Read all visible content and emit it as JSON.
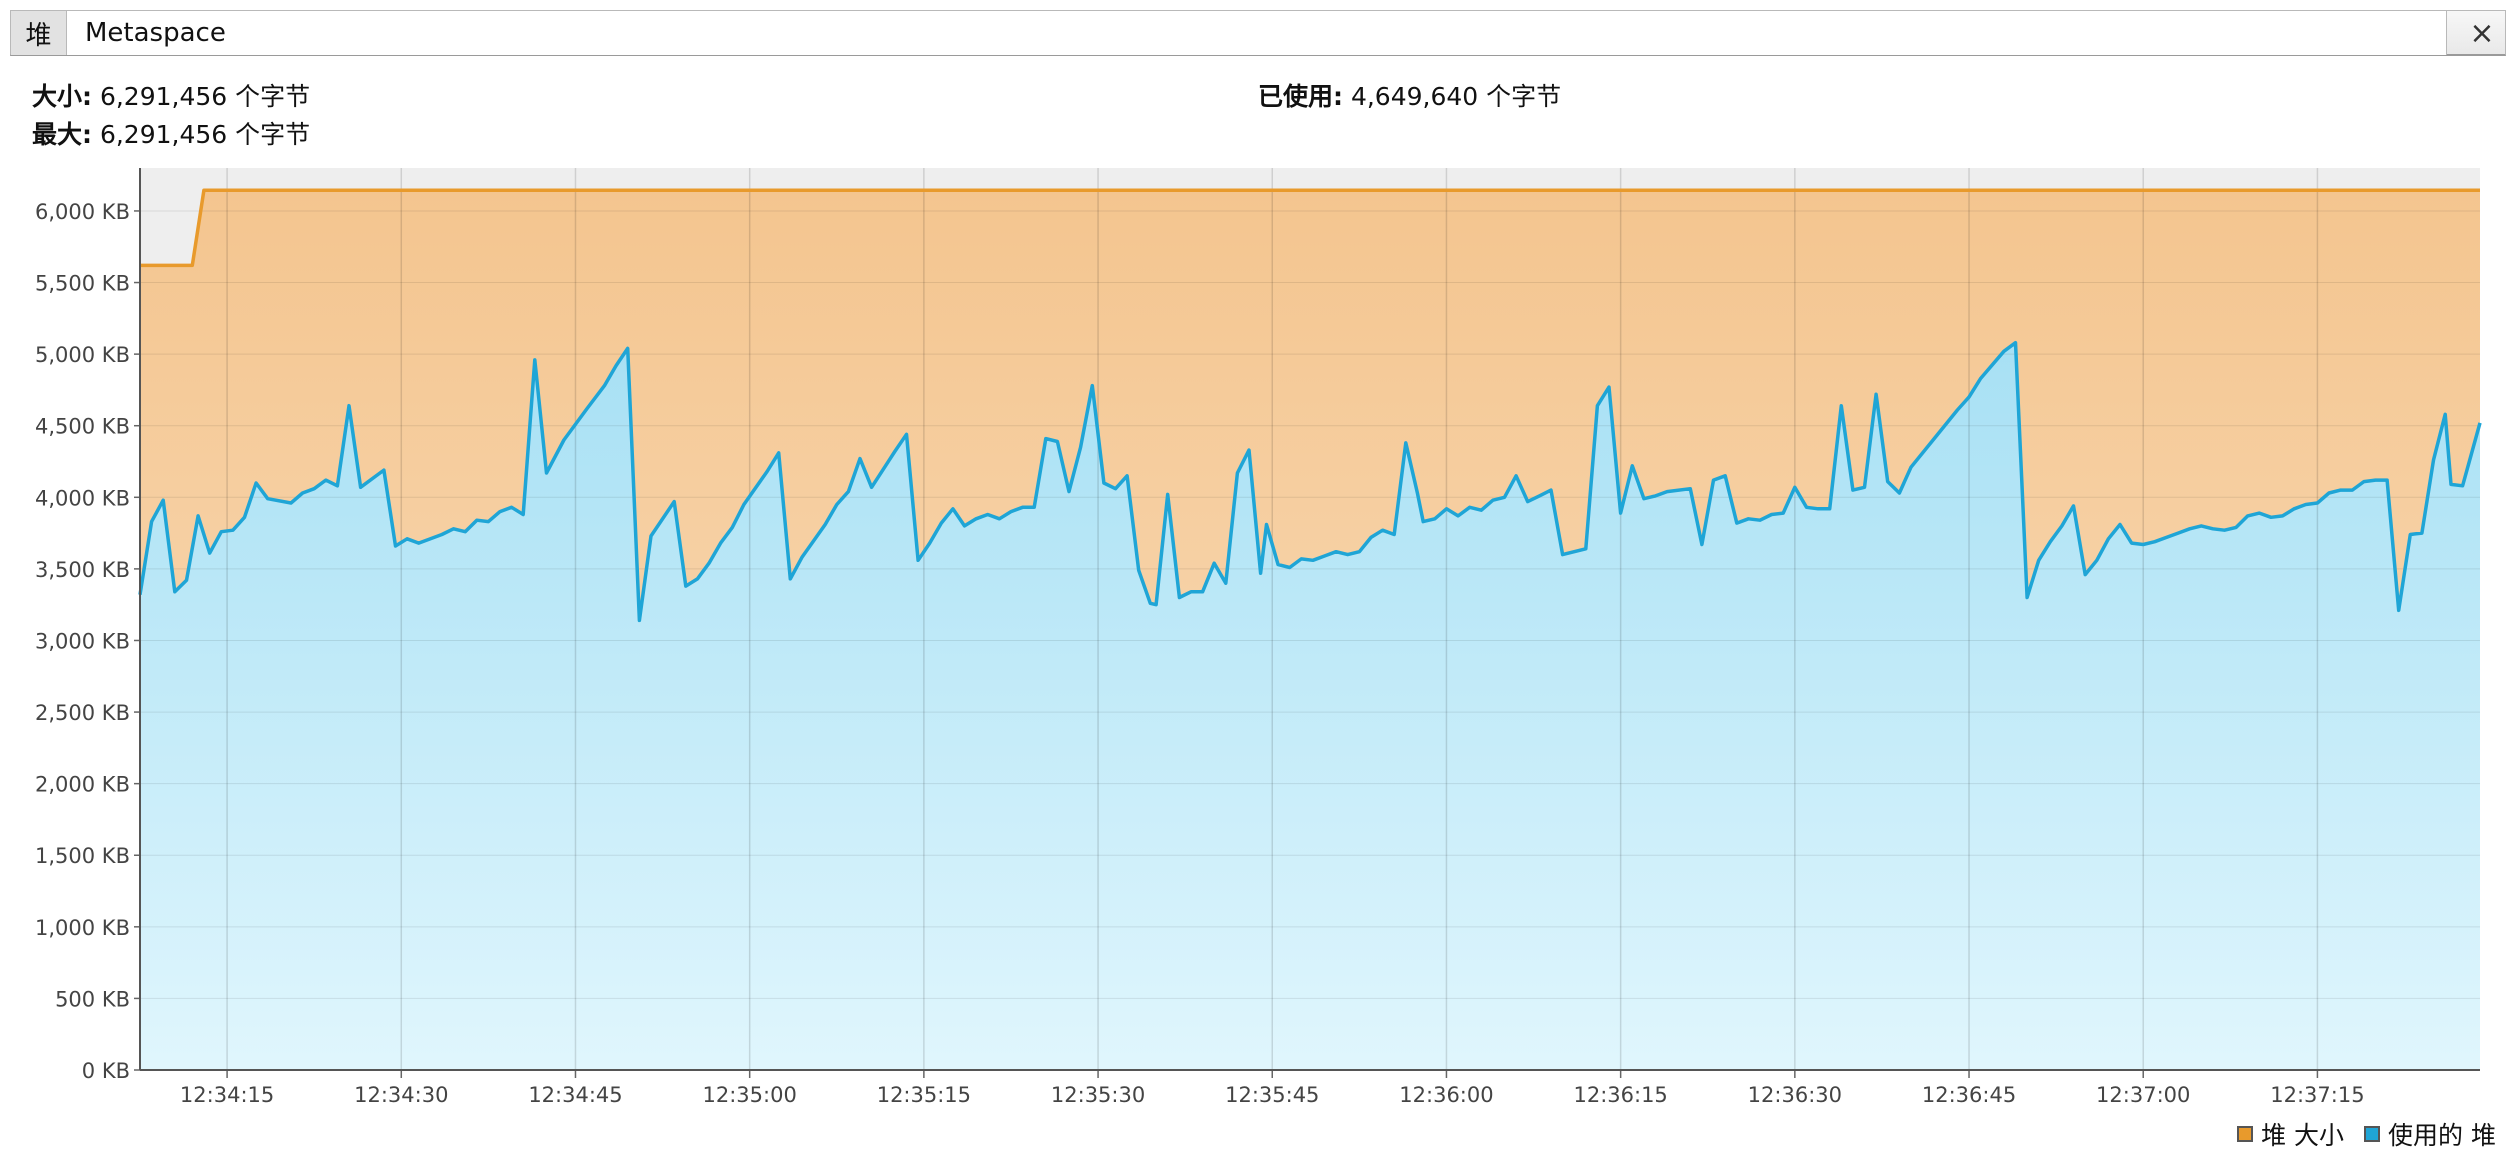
{
  "tabs": [
    {
      "label": "堆",
      "active": false
    },
    {
      "label": "Metaspace",
      "active": true
    }
  ],
  "close_glyph": "×",
  "info": {
    "size_label": "大小:",
    "size_value": "6,291,456 个字节",
    "max_label": "最大:",
    "max_value": "6,291,456 个字节",
    "used_label": "已使用:",
    "used_value": "4,649,640 个字节"
  },
  "chart_data": {
    "type": "area",
    "ylim": [
      0,
      6300
    ],
    "xlim": [
      "12:34:07.5",
      "12:37:29"
    ],
    "y_ticks": [
      {
        "v": 0,
        "label": "0 KB"
      },
      {
        "v": 500,
        "label": "500 KB"
      },
      {
        "v": 1000,
        "label": "1,000 KB"
      },
      {
        "v": 1500,
        "label": "1,500 KB"
      },
      {
        "v": 2000,
        "label": "2,000 KB"
      },
      {
        "v": 2500,
        "label": "2,500 KB"
      },
      {
        "v": 3000,
        "label": "3,000 KB"
      },
      {
        "v": 3500,
        "label": "3,500 KB"
      },
      {
        "v": 4000,
        "label": "4,000 KB"
      },
      {
        "v": 4500,
        "label": "4,500 KB"
      },
      {
        "v": 5000,
        "label": "5,000 KB"
      },
      {
        "v": 5500,
        "label": "5,500 KB"
      },
      {
        "v": 6000,
        "label": "6,000 KB"
      }
    ],
    "x_ticks": [
      "12:34:15",
      "12:34:30",
      "12:34:45",
      "12:35:00",
      "12:35:15",
      "12:35:30",
      "12:35:45",
      "12:36:00",
      "12:36:15",
      "12:36:30",
      "12:36:45",
      "12:37:00",
      "12:37:15"
    ],
    "grid": true,
    "legend_position": "bottom-right",
    "series": [
      {
        "name": "堆 大小",
        "color": "#e89a2c",
        "points": [
          [
            "12:34:07.5",
            5620
          ],
          [
            "12:34:12",
            5620
          ],
          [
            "12:34:13",
            6144
          ],
          [
            "12:37:29",
            6144
          ]
        ]
      },
      {
        "name": "使用的 堆",
        "color": "#1fa5d6",
        "points": [
          [
            "12:34:07.5",
            3320
          ],
          [
            "12:34:08.5",
            3830
          ],
          [
            "12:34:09.5",
            3980
          ],
          [
            "12:34:10.5",
            3340
          ],
          [
            "12:34:11.5",
            3420
          ],
          [
            "12:34:12.5",
            3870
          ],
          [
            "12:34:13.5",
            3610
          ],
          [
            "12:34:14.5",
            3760
          ],
          [
            "12:34:15.5",
            3770
          ],
          [
            "12:34:16.5",
            3860
          ],
          [
            "12:34:17.5",
            4100
          ],
          [
            "12:34:18.5",
            3990
          ],
          [
            "12:34:20.5",
            3960
          ],
          [
            "12:34:21.5",
            4030
          ],
          [
            "12:34:22.5",
            4060
          ],
          [
            "12:34:23.5",
            4120
          ],
          [
            "12:34:24.5",
            4080
          ],
          [
            "12:34:25.5",
            4640
          ],
          [
            "12:34:26.5",
            4070
          ],
          [
            "12:34:28.5",
            4190
          ],
          [
            "12:34:29.5",
            3660
          ],
          [
            "12:34:30.5",
            3710
          ],
          [
            "12:34:31.5",
            3680
          ],
          [
            "12:34:33.5",
            3740
          ],
          [
            "12:34:34.5",
            3780
          ],
          [
            "12:34:35.5",
            3760
          ],
          [
            "12:34:36.5",
            3840
          ],
          [
            "12:34:37.5",
            3830
          ],
          [
            "12:34:38.5",
            3900
          ],
          [
            "12:34:39.5",
            3930
          ],
          [
            "12:34:40.5",
            3880
          ],
          [
            "12:34:41.5",
            4960
          ],
          [
            "12:34:42.5",
            4170
          ],
          [
            "12:34:44",
            4400
          ],
          [
            "12:34:46",
            4620
          ],
          [
            "12:34:47.5",
            4780
          ],
          [
            "12:34:48.5",
            4920
          ],
          [
            "12:34:49.5",
            5040
          ],
          [
            "12:34:50.5",
            3140
          ],
          [
            "12:34:51.5",
            3730
          ],
          [
            "12:34:53.5",
            3970
          ],
          [
            "12:34:54.5",
            3380
          ],
          [
            "12:34:55.5",
            3430
          ],
          [
            "12:34:56.5",
            3540
          ],
          [
            "12:34:57.5",
            3680
          ],
          [
            "12:34:58.5",
            3790
          ],
          [
            "12:34:59.5",
            3950
          ],
          [
            "12:35:01.5",
            4180
          ],
          [
            "12:35:02.5",
            4310
          ],
          [
            "12:35:03.5",
            3430
          ],
          [
            "12:35:04.5",
            3580
          ],
          [
            "12:35:06.5",
            3810
          ],
          [
            "12:35:07.5",
            3950
          ],
          [
            "12:35:08.5",
            4040
          ],
          [
            "12:35:09.5",
            4270
          ],
          [
            "12:35:10.5",
            4070
          ],
          [
            "12:35:12.5",
            4320
          ],
          [
            "12:35:13.5",
            4440
          ],
          [
            "12:35:14.5",
            3560
          ],
          [
            "12:35:15.5",
            3680
          ],
          [
            "12:35:16.5",
            3820
          ],
          [
            "12:35:17.5",
            3920
          ],
          [
            "12:35:18.5",
            3800
          ],
          [
            "12:35:19.5",
            3850
          ],
          [
            "12:35:20.5",
            3880
          ],
          [
            "12:35:21.5",
            3850
          ],
          [
            "12:35:22.5",
            3900
          ],
          [
            "12:35:23.5",
            3930
          ],
          [
            "12:35:24.5",
            3930
          ],
          [
            "12:35:25.5",
            4410
          ],
          [
            "12:35:26.5",
            4390
          ],
          [
            "12:35:27.5",
            4040
          ],
          [
            "12:35:28.5",
            4350
          ],
          [
            "12:35:29.5",
            4780
          ],
          [
            "12:35:30.5",
            4100
          ],
          [
            "12:35:31.5",
            4060
          ],
          [
            "12:35:32.5",
            4150
          ],
          [
            "12:35:33.5",
            3490
          ],
          [
            "12:35:34.5",
            3260
          ],
          [
            "12:35:35",
            3250
          ],
          [
            "12:35:36",
            4020
          ],
          [
            "12:35:37",
            3300
          ],
          [
            "12:35:38",
            3340
          ],
          [
            "12:35:39",
            3340
          ],
          [
            "12:35:40",
            3540
          ],
          [
            "12:35:41",
            3400
          ],
          [
            "12:35:42",
            4170
          ],
          [
            "12:35:43",
            4330
          ],
          [
            "12:35:44",
            3470
          ],
          [
            "12:35:44.5",
            3810
          ],
          [
            "12:35:45.5",
            3530
          ],
          [
            "12:35:46.5",
            3510
          ],
          [
            "12:35:47.5",
            3570
          ],
          [
            "12:35:48.5",
            3560
          ],
          [
            "12:35:49.5",
            3590
          ],
          [
            "12:35:50.5",
            3620
          ],
          [
            "12:35:51.5",
            3600
          ],
          [
            "12:35:52.5",
            3620
          ],
          [
            "12:35:53.5",
            3720
          ],
          [
            "12:35:54.5",
            3770
          ],
          [
            "12:35:55.5",
            3740
          ],
          [
            "12:35:56.5",
            4380
          ],
          [
            "12:35:57.5",
            4030
          ],
          [
            "12:35:58",
            3830
          ],
          [
            "12:35:59",
            3850
          ],
          [
            "12:36:00",
            3920
          ],
          [
            "12:36:01",
            3870
          ],
          [
            "12:36:02",
            3930
          ],
          [
            "12:36:03",
            3910
          ],
          [
            "12:36:04",
            3980
          ],
          [
            "12:36:05",
            4000
          ],
          [
            "12:36:06",
            4150
          ],
          [
            "12:36:07",
            3970
          ],
          [
            "12:36:08",
            4010
          ],
          [
            "12:36:09",
            4050
          ],
          [
            "12:36:10",
            3600
          ],
          [
            "12:36:11",
            3620
          ],
          [
            "12:36:12",
            3640
          ],
          [
            "12:36:13",
            4640
          ],
          [
            "12:36:14",
            4770
          ],
          [
            "12:36:15",
            3890
          ],
          [
            "12:36:16",
            4220
          ],
          [
            "12:36:17",
            3990
          ],
          [
            "12:36:18",
            4010
          ],
          [
            "12:36:19",
            4040
          ],
          [
            "12:36:21",
            4060
          ],
          [
            "12:36:22",
            3670
          ],
          [
            "12:36:23",
            4120
          ],
          [
            "12:36:24",
            4150
          ],
          [
            "12:36:25",
            3820
          ],
          [
            "12:36:26",
            3850
          ],
          [
            "12:36:27",
            3840
          ],
          [
            "12:36:28",
            3880
          ],
          [
            "12:36:29",
            3890
          ],
          [
            "12:36:30",
            4070
          ],
          [
            "12:36:31",
            3930
          ],
          [
            "12:36:32",
            3920
          ],
          [
            "12:36:33",
            3920
          ],
          [
            "12:36:34",
            4640
          ],
          [
            "12:36:35",
            4050
          ],
          [
            "12:36:36",
            4070
          ],
          [
            "12:36:37",
            4720
          ],
          [
            "12:36:38",
            4110
          ],
          [
            "12:36:39",
            4030
          ],
          [
            "12:36:40",
            4210
          ],
          [
            "12:36:42",
            4410
          ],
          [
            "12:36:44",
            4610
          ],
          [
            "12:36:45",
            4700
          ],
          [
            "12:36:46",
            4830
          ],
          [
            "12:36:48",
            5020
          ],
          [
            "12:36:49",
            5080
          ],
          [
            "12:36:50",
            3300
          ],
          [
            "12:36:51",
            3560
          ],
          [
            "12:36:52",
            3690
          ],
          [
            "12:36:53",
            3800
          ],
          [
            "12:36:54",
            3940
          ],
          [
            "12:36:55",
            3460
          ],
          [
            "12:36:56",
            3560
          ],
          [
            "12:36:57",
            3710
          ],
          [
            "12:36:58",
            3810
          ],
          [
            "12:36:59",
            3680
          ],
          [
            "12:37:00",
            3670
          ],
          [
            "12:37:01",
            3690
          ],
          [
            "12:37:03",
            3750
          ],
          [
            "12:37:04",
            3780
          ],
          [
            "12:37:05",
            3800
          ],
          [
            "12:37:06",
            3780
          ],
          [
            "12:37:07",
            3770
          ],
          [
            "12:37:08",
            3790
          ],
          [
            "12:37:09",
            3870
          ],
          [
            "12:37:10",
            3890
          ],
          [
            "12:37:11",
            3860
          ],
          [
            "12:37:12",
            3870
          ],
          [
            "12:37:13",
            3920
          ],
          [
            "12:37:14",
            3950
          ],
          [
            "12:37:15",
            3960
          ],
          [
            "12:37:16",
            4030
          ],
          [
            "12:37:17",
            4050
          ],
          [
            "12:37:18",
            4050
          ],
          [
            "12:37:19",
            4110
          ],
          [
            "12:37:20",
            4120
          ],
          [
            "12:37:21",
            4120
          ],
          [
            "12:37:22",
            3210
          ],
          [
            "12:37:23",
            3740
          ],
          [
            "12:37:24",
            3750
          ],
          [
            "12:37:25",
            4260
          ],
          [
            "12:37:26",
            4580
          ],
          [
            "12:37:26.5",
            4090
          ],
          [
            "12:37:27.5",
            4080
          ],
          [
            "12:37:29",
            4520
          ]
        ]
      }
    ]
  }
}
